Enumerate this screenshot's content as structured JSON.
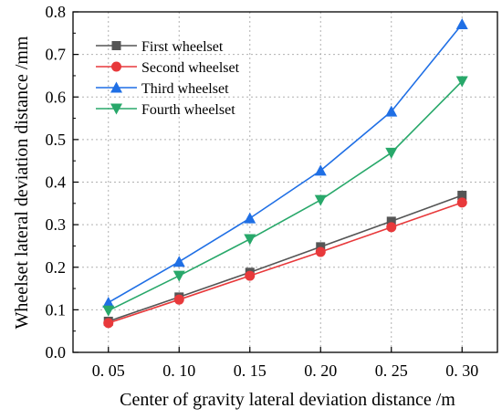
{
  "chart_data": {
    "type": "line",
    "title": "",
    "xlabel": "Center of gravity lateral  deviation distance /m",
    "ylabel": "Wheelset lateral deviation distance /mm",
    "x": [
      0.05,
      0.1,
      0.15,
      0.2,
      0.25,
      0.3
    ],
    "x_tick_labels": [
      "0. 05",
      "0. 10",
      "0. 15",
      "0. 20",
      "0. 25",
      "0. 30"
    ],
    "xlim": [
      0.025,
      0.325
    ],
    "ylim": [
      0.0,
      0.8
    ],
    "y_ticks": [
      0.0,
      0.1,
      0.2,
      0.3,
      0.4,
      0.5,
      0.6,
      0.7,
      0.8
    ],
    "y_tick_labels": [
      "0.0",
      "0.1",
      "0.2",
      "0.3",
      "0.4",
      "0.5",
      "0.6",
      "0.7",
      "0.8"
    ],
    "grid": true,
    "legend_position": "top-left",
    "series": [
      {
        "name": "First wheelset",
        "color": "#555555",
        "marker": "square",
        "values": [
          0.073,
          0.13,
          0.188,
          0.248,
          0.308,
          0.369
        ]
      },
      {
        "name": "Second wheelset",
        "color": "#e8393b",
        "marker": "circle",
        "values": [
          0.069,
          0.124,
          0.18,
          0.236,
          0.294,
          0.352
        ]
      },
      {
        "name": "Third wheelset",
        "color": "#1f6fe5",
        "marker": "triangle-up",
        "values": [
          0.117,
          0.213,
          0.315,
          0.427,
          0.566,
          0.771
        ]
      },
      {
        "name": "Fourth wheelset",
        "color": "#28a86a",
        "marker": "triangle-down",
        "values": [
          0.098,
          0.18,
          0.266,
          0.358,
          0.469,
          0.637
        ]
      }
    ]
  }
}
